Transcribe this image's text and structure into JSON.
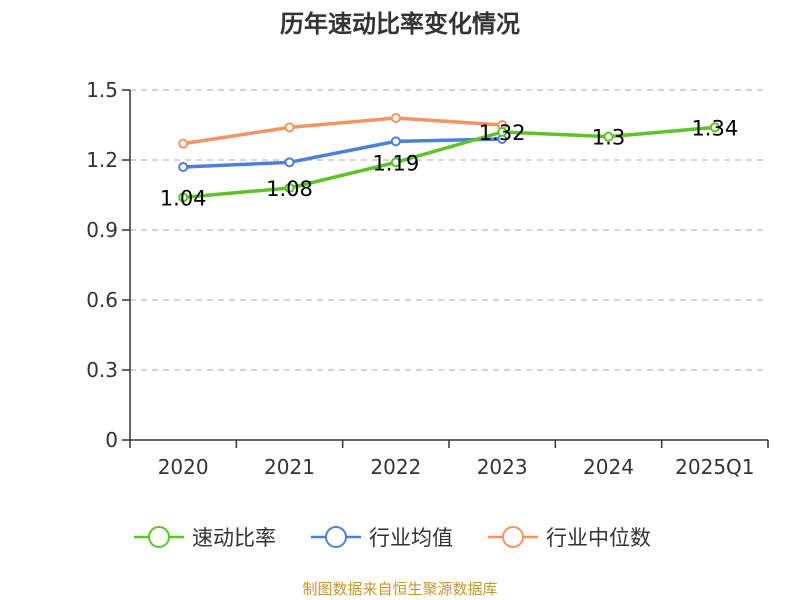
{
  "chart_data": {
    "type": "line",
    "title": "历年速动比率变化情况",
    "categories": [
      "2020",
      "2021",
      "2022",
      "2023",
      "2024",
      "2025Q1"
    ],
    "ylim": [
      0,
      1.5
    ],
    "yticks": [
      "0",
      "0.3",
      "0.6",
      "0.9",
      "1.2",
      "1.5"
    ],
    "grid": true,
    "legend_position": "bottom",
    "series": [
      {
        "name": "速动比率",
        "color": "#5ec229",
        "values": [
          1.04,
          1.08,
          1.19,
          1.32,
          1.3,
          1.34
        ],
        "labels": [
          "1.04",
          "1.08",
          "1.19",
          "1.32",
          "1.3",
          "1.34"
        ]
      },
      {
        "name": "行业均值",
        "color": "#4e7fd8",
        "values": [
          1.17,
          1.19,
          1.28,
          1.29,
          null,
          null
        ]
      },
      {
        "name": "行业中位数",
        "color": "#f49462",
        "values": [
          1.27,
          1.34,
          1.38,
          1.35,
          null,
          null
        ]
      }
    ]
  },
  "footer": {
    "source": "制图数据来自恒生聚源数据库"
  }
}
